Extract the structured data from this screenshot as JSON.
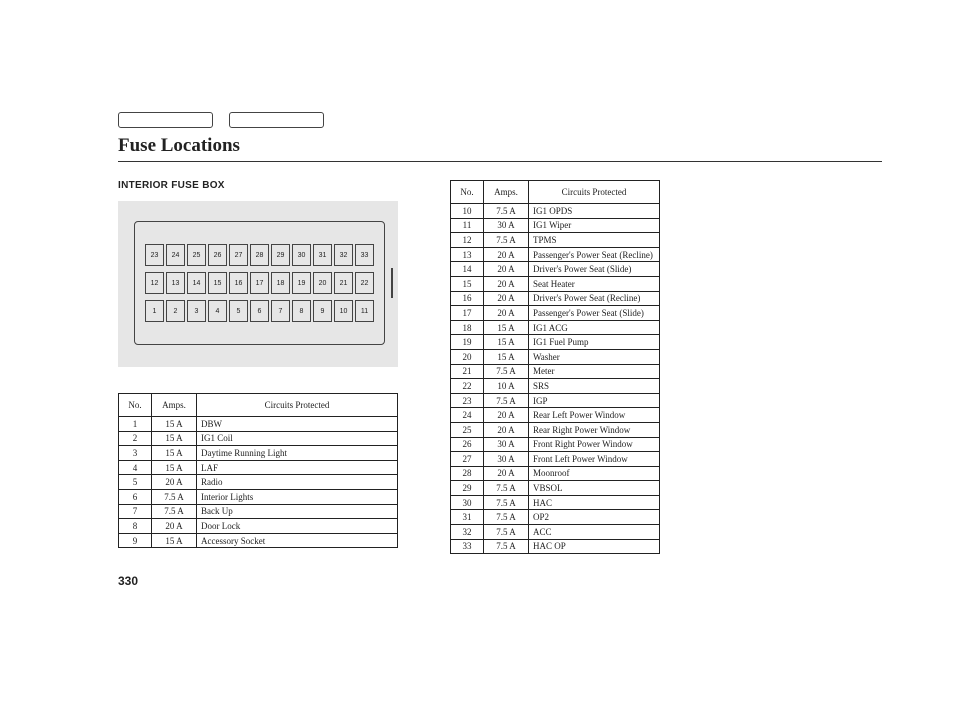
{
  "title": "Fuse Locations",
  "section_heading": "INTERIOR FUSE BOX",
  "page_number": "330",
  "columns": {
    "no": "No.",
    "amps": "Amps.",
    "circuits": "Circuits Protected"
  },
  "diagram_rows": [
    [
      "23",
      "24",
      "25",
      "26",
      "27",
      "28",
      "29",
      "30",
      "31",
      "32",
      "33"
    ],
    [
      "12",
      "13",
      "14",
      "15",
      "16",
      "17",
      "18",
      "19",
      "20",
      "21",
      "22"
    ],
    [
      "1",
      "2",
      "3",
      "4",
      "5",
      "6",
      "7",
      "8",
      "9",
      "10",
      "11"
    ]
  ],
  "table_left": [
    {
      "no": "1",
      "amps": "15 A",
      "circ": "DBW"
    },
    {
      "no": "2",
      "amps": "15 A",
      "circ": "IG1 Coil"
    },
    {
      "no": "3",
      "amps": "15 A",
      "circ": "Daytime Running Light"
    },
    {
      "no": "4",
      "amps": "15 A",
      "circ": "LAF"
    },
    {
      "no": "5",
      "amps": "20 A",
      "circ": "Radio"
    },
    {
      "no": "6",
      "amps": "7.5 A",
      "circ": "Interior Lights"
    },
    {
      "no": "7",
      "amps": "7.5 A",
      "circ": "Back Up"
    },
    {
      "no": "8",
      "amps": "20 A",
      "circ": "Door Lock"
    },
    {
      "no": "9",
      "amps": "15 A",
      "circ": "Accessory Socket"
    }
  ],
  "table_right": [
    {
      "no": "10",
      "amps": "7.5 A",
      "circ": "IG1 OPDS"
    },
    {
      "no": "11",
      "amps": "30 A",
      "circ": "IG1 Wiper"
    },
    {
      "no": "12",
      "amps": "7.5 A",
      "circ": "TPMS"
    },
    {
      "no": "13",
      "amps": "20 A",
      "circ": "Passenger's Power Seat (Recline)"
    },
    {
      "no": "14",
      "amps": "20 A",
      "circ": "Driver's Power Seat (Slide)"
    },
    {
      "no": "15",
      "amps": "20 A",
      "circ": "Seat Heater"
    },
    {
      "no": "16",
      "amps": "20 A",
      "circ": "Driver's Power Seat (Recline)"
    },
    {
      "no": "17",
      "amps": "20 A",
      "circ": "Passenger's Power Seat (Slide)"
    },
    {
      "no": "18",
      "amps": "15 A",
      "circ": "IG1 ACG"
    },
    {
      "no": "19",
      "amps": "15 A",
      "circ": "IG1 Fuel Pump"
    },
    {
      "no": "20",
      "amps": "15 A",
      "circ": "Washer"
    },
    {
      "no": "21",
      "amps": "7.5 A",
      "circ": "Meter"
    },
    {
      "no": "22",
      "amps": "10 A",
      "circ": "SRS"
    },
    {
      "no": "23",
      "amps": "7.5 A",
      "circ": "IGP"
    },
    {
      "no": "24",
      "amps": "20 A",
      "circ": "Rear Left Power Window"
    },
    {
      "no": "25",
      "amps": "20 A",
      "circ": "Rear Right Power Window"
    },
    {
      "no": "26",
      "amps": "30 A",
      "circ": "Front Right Power Window"
    },
    {
      "no": "27",
      "amps": "30 A",
      "circ": "Front Left Power Window"
    },
    {
      "no": "28",
      "amps": "20 A",
      "circ": "Moonroof"
    },
    {
      "no": "29",
      "amps": "7.5 A",
      "circ": "VBSOL"
    },
    {
      "no": "30",
      "amps": "7.5 A",
      "circ": "HAC"
    },
    {
      "no": "31",
      "amps": "7.5 A",
      "circ": "OP2"
    },
    {
      "no": "32",
      "amps": "7.5 A",
      "circ": "ACC"
    },
    {
      "no": "33",
      "amps": "7.5 A",
      "circ": "HAC OP"
    }
  ]
}
